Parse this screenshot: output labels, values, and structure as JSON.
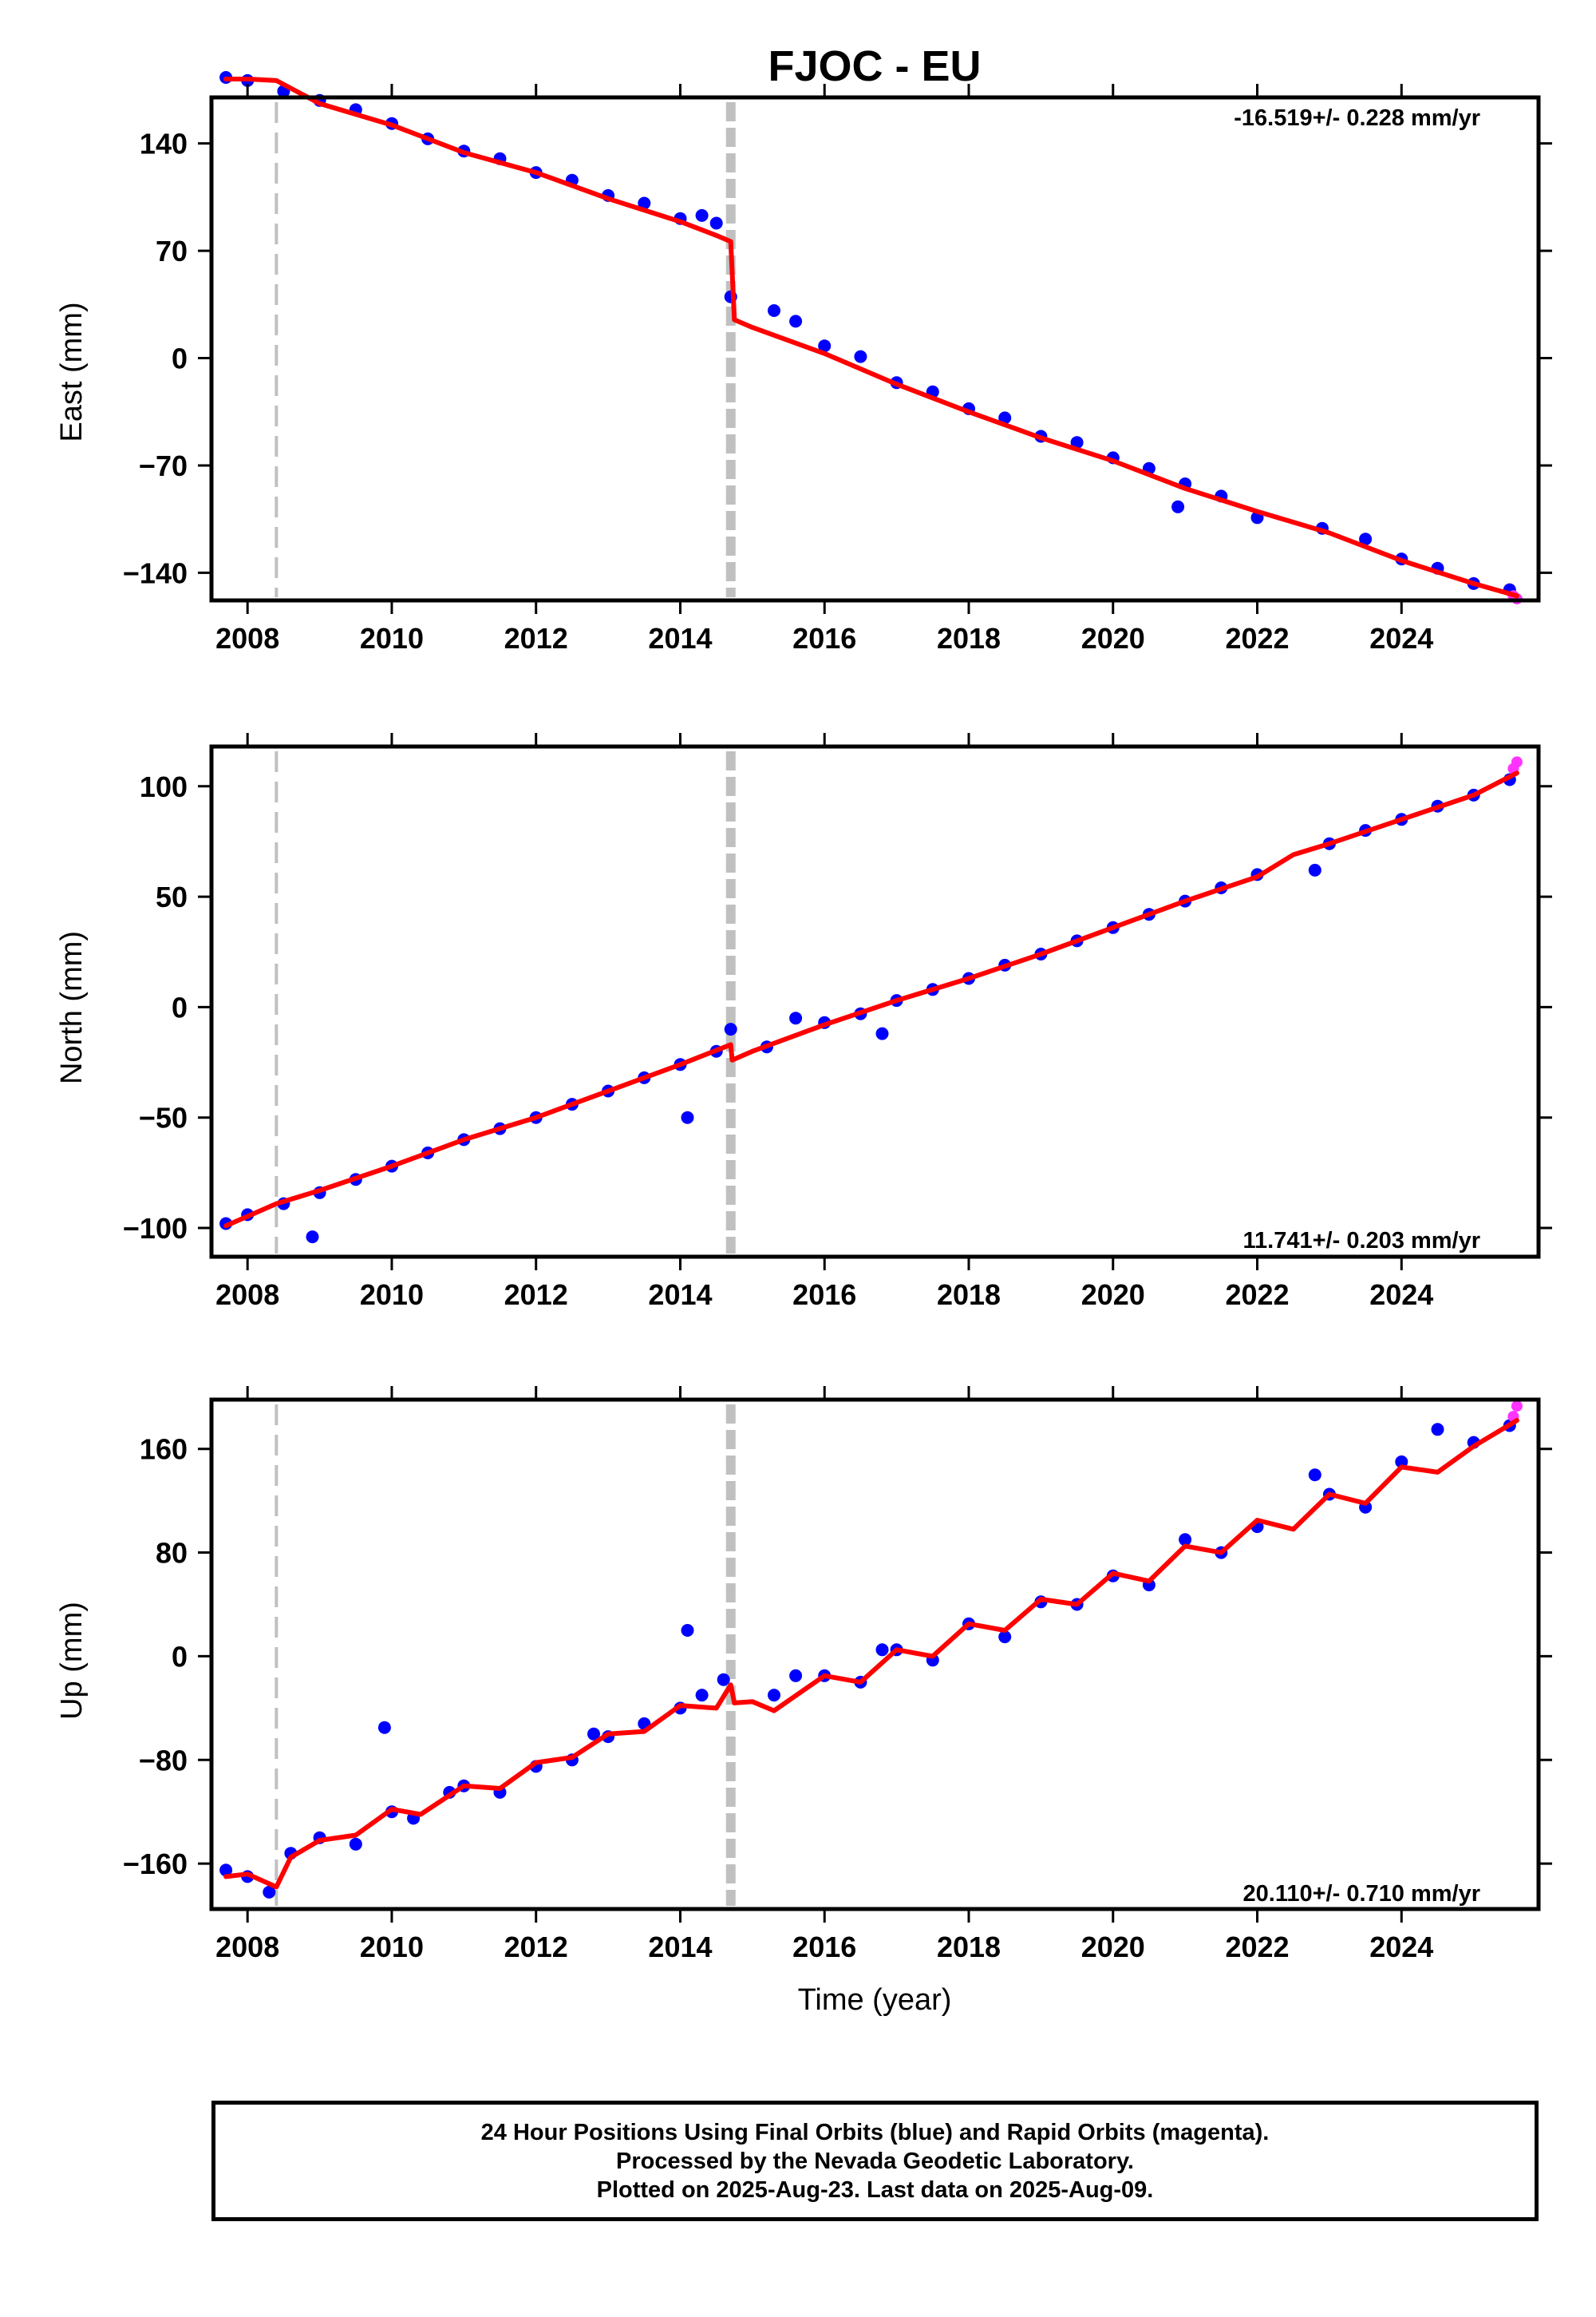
{
  "chart_data": [
    {
      "type": "scatter",
      "title": "FJOC - EU",
      "ylabel": "East (mm)",
      "xlabel": "",
      "xlim": [
        2007.5,
        2025.9
      ],
      "ylim": [
        -158,
        170
      ],
      "xticks": [
        2008,
        2010,
        2012,
        2014,
        2016,
        2018,
        2020,
        2022,
        2024
      ],
      "yticks": [
        -140,
        -70,
        0,
        70,
        140
      ],
      "tick_labels": {
        "y": [
          "−140",
          "−70",
          "0",
          "70",
          "140"
        ]
      },
      "rate_label": "-16.519+/- 0.228 mm/yr",
      "rate_position": "top-right",
      "dashed_lines_x": [
        2008.4,
        2014.7
      ],
      "model": {
        "x": [
          2007.7,
          2008.0,
          2008.4,
          2009.0,
          2010.0,
          2011.0,
          2012.0,
          2013.0,
          2014.0,
          2014.5,
          2014.7,
          2014.75,
          2015.0,
          2016.0,
          2017.0,
          2018.0,
          2019.0,
          2020.0,
          2021.0,
          2022.0,
          2023.0,
          2024.0,
          2025.0,
          2025.6
        ],
        "y": [
          182,
          182,
          181,
          166,
          152,
          134,
          121,
          104,
          89,
          80,
          76,
          25,
          20,
          3,
          -17,
          -35,
          -52,
          -67,
          -85,
          -100,
          -114,
          -132,
          -147,
          -155
        ]
      },
      "series": [
        {
          "color": "#0000ff",
          "points": [
            [
              2007.7,
              183
            ],
            [
              2008.0,
              181
            ],
            [
              2008.5,
              174
            ],
            [
              2009.0,
              168
            ],
            [
              2009.5,
              162
            ],
            [
              2010.0,
              153
            ],
            [
              2010.5,
              143
            ],
            [
              2011.0,
              135
            ],
            [
              2011.5,
              130
            ],
            [
              2012.0,
              121
            ],
            [
              2012.5,
              116
            ],
            [
              2013.0,
              106
            ],
            [
              2013.5,
              101
            ],
            [
              2014.0,
              91
            ],
            [
              2014.3,
              93
            ],
            [
              2014.5,
              88
            ],
            [
              2014.7,
              40
            ],
            [
              2015.3,
              31
            ],
            [
              2015.6,
              24
            ],
            [
              2016.0,
              8
            ],
            [
              2016.5,
              1
            ],
            [
              2017.0,
              -16
            ],
            [
              2017.5,
              -22
            ],
            [
              2018.0,
              -33
            ],
            [
              2018.5,
              -39
            ],
            [
              2019.0,
              -51
            ],
            [
              2019.5,
              -55
            ],
            [
              2020.0,
              -65
            ],
            [
              2020.5,
              -72
            ],
            [
              2020.9,
              -97
            ],
            [
              2021.0,
              -82
            ],
            [
              2021.5,
              -90
            ],
            [
              2022.0,
              -104
            ],
            [
              2022.9,
              -111
            ],
            [
              2023.5,
              -118
            ],
            [
              2024.0,
              -131
            ],
            [
              2024.5,
              -137
            ],
            [
              2025.0,
              -147
            ],
            [
              2025.5,
              -151
            ]
          ]
        },
        {
          "color": "#ff33ff",
          "points": [
            [
              2025.55,
              -155
            ],
            [
              2025.6,
              -157
            ]
          ]
        }
      ]
    },
    {
      "type": "scatter",
      "title": "",
      "ylabel": "North (mm)",
      "xlabel": "",
      "xlim": [
        2007.5,
        2025.9
      ],
      "ylim": [
        -113,
        118
      ],
      "xticks": [
        2008,
        2010,
        2012,
        2014,
        2016,
        2018,
        2020,
        2022,
        2024
      ],
      "yticks": [
        -100,
        -50,
        0,
        50,
        100
      ],
      "tick_labels": {
        "y": [
          "−100",
          "−50",
          "0",
          "50",
          "100"
        ]
      },
      "rate_label": "11.741+/- 0.203 mm/yr",
      "rate_position": "bottom-right",
      "dashed_lines_x": [
        2008.4,
        2014.7
      ],
      "model": {
        "x": [
          2007.7,
          2008.4,
          2009.0,
          2010.0,
          2011.0,
          2012.0,
          2013.0,
          2014.0,
          2014.7,
          2014.72,
          2015.0,
          2016.0,
          2017.0,
          2018.0,
          2019.0,
          2020.0,
          2021.0,
          2022.0,
          2022.5,
          2023.0,
          2024.0,
          2025.0,
          2025.6
        ],
        "y": [
          -99,
          -89,
          -83,
          -72,
          -60,
          -50,
          -38,
          -26,
          -17,
          -24,
          -20,
          -8,
          3,
          13,
          24,
          36,
          48,
          59,
          69,
          74,
          85,
          96,
          106
        ]
      },
      "series": [
        {
          "color": "#0000ff",
          "points": [
            [
              2007.7,
              -98
            ],
            [
              2008.0,
              -94
            ],
            [
              2008.5,
              -89
            ],
            [
              2008.9,
              -104
            ],
            [
              2009.0,
              -84
            ],
            [
              2009.5,
              -78
            ],
            [
              2010.0,
              -72
            ],
            [
              2010.5,
              -66
            ],
            [
              2011.0,
              -60
            ],
            [
              2011.5,
              -55
            ],
            [
              2012.0,
              -50
            ],
            [
              2012.5,
              -44
            ],
            [
              2013.0,
              -38
            ],
            [
              2013.5,
              -32
            ],
            [
              2014.0,
              -26
            ],
            [
              2014.1,
              -50
            ],
            [
              2014.5,
              -20
            ],
            [
              2014.7,
              -10
            ],
            [
              2015.2,
              -18
            ],
            [
              2015.6,
              -5
            ],
            [
              2016.0,
              -7
            ],
            [
              2016.5,
              -3
            ],
            [
              2016.8,
              -12
            ],
            [
              2017.0,
              3
            ],
            [
              2017.5,
              8
            ],
            [
              2018.0,
              13
            ],
            [
              2018.5,
              19
            ],
            [
              2019.0,
              24
            ],
            [
              2019.5,
              30
            ],
            [
              2020.0,
              36
            ],
            [
              2020.5,
              42
            ],
            [
              2021.0,
              48
            ],
            [
              2021.5,
              54
            ],
            [
              2022.0,
              60
            ],
            [
              2022.8,
              62
            ],
            [
              2023.0,
              74
            ],
            [
              2023.5,
              80
            ],
            [
              2024.0,
              85
            ],
            [
              2024.5,
              91
            ],
            [
              2025.0,
              96
            ],
            [
              2025.5,
              103
            ]
          ]
        },
        {
          "color": "#ff33ff",
          "points": [
            [
              2025.55,
              108
            ],
            [
              2025.6,
              111
            ]
          ]
        }
      ]
    },
    {
      "type": "scatter",
      "title": "",
      "ylabel": "Up (mm)",
      "xlabel": "Time (year)",
      "xlim": [
        2007.5,
        2025.9
      ],
      "ylim": [
        -195,
        198
      ],
      "xticks": [
        2008,
        2010,
        2012,
        2014,
        2016,
        2018,
        2020,
        2022,
        2024
      ],
      "yticks": [
        -160,
        -80,
        0,
        80,
        160
      ],
      "tick_labels": {
        "y": [
          "−160",
          "−80",
          "0",
          "80",
          "160"
        ]
      },
      "rate_label": "20.110+/- 0.710 mm/yr",
      "rate_position": "bottom-right",
      "dashed_lines_x": [
        2008.4,
        2014.7
      ],
      "model": {
        "x": [
          2007.7,
          2008.0,
          2008.4,
          2008.6,
          2009.0,
          2009.5,
          2010.0,
          2010.4,
          2011.0,
          2011.5,
          2012.0,
          2012.5,
          2013.0,
          2013.5,
          2014.0,
          2014.5,
          2014.7,
          2014.75,
          2015.0,
          2015.3,
          2016.0,
          2016.5,
          2017.0,
          2017.5,
          2018.0,
          2018.5,
          2019.0,
          2019.5,
          2020.0,
          2020.5,
          2021.0,
          2021.5,
          2022.0,
          2022.5,
          2023.0,
          2023.5,
          2024.0,
          2024.5,
          2025.0,
          2025.6
        ],
        "y": [
          -170,
          -168,
          -178,
          -155,
          -142,
          -138,
          -118,
          -122,
          -100,
          -102,
          -82,
          -78,
          -60,
          -58,
          -38,
          -40,
          -22,
          -36,
          -35,
          -42,
          -15,
          -20,
          5,
          0,
          25,
          20,
          44,
          40,
          64,
          58,
          85,
          80,
          105,
          98,
          125,
          118,
          146,
          142,
          162,
          182
        ]
      },
      "series": [
        {
          "color": "#0000ff",
          "points": [
            [
              2007.7,
              -165
            ],
            [
              2008.0,
              -170
            ],
            [
              2008.3,
              -182
            ],
            [
              2008.6,
              -152
            ],
            [
              2009.0,
              -140
            ],
            [
              2009.5,
              -145
            ],
            [
              2009.9,
              -55
            ],
            [
              2010.0,
              -120
            ],
            [
              2010.3,
              -125
            ],
            [
              2010.8,
              -105
            ],
            [
              2011.0,
              -100
            ],
            [
              2011.5,
              -105
            ],
            [
              2012.0,
              -85
            ],
            [
              2012.5,
              -80
            ],
            [
              2012.8,
              -60
            ],
            [
              2013.0,
              -62
            ],
            [
              2013.5,
              -52
            ],
            [
              2014.0,
              -40
            ],
            [
              2014.1,
              20
            ],
            [
              2014.3,
              -30
            ],
            [
              2014.6,
              -18
            ],
            [
              2015.3,
              -30
            ],
            [
              2015.6,
              -15
            ],
            [
              2016.0,
              -15
            ],
            [
              2016.5,
              -20
            ],
            [
              2016.8,
              5
            ],
            [
              2017.0,
              5
            ],
            [
              2017.5,
              -3
            ],
            [
              2018.0,
              25
            ],
            [
              2018.5,
              15
            ],
            [
              2019.0,
              42
            ],
            [
              2019.5,
              40
            ],
            [
              2020.0,
              62
            ],
            [
              2020.5,
              55
            ],
            [
              2021.0,
              90
            ],
            [
              2021.5,
              80
            ],
            [
              2022.0,
              100
            ],
            [
              2022.8,
              140
            ],
            [
              2023.0,
              125
            ],
            [
              2023.5,
              115
            ],
            [
              2024.0,
              150
            ],
            [
              2024.5,
              175
            ],
            [
              2025.0,
              165
            ],
            [
              2025.5,
              178
            ]
          ]
        },
        {
          "color": "#ff33ff",
          "points": [
            [
              2025.55,
              185
            ],
            [
              2025.6,
              193
            ]
          ]
        }
      ]
    }
  ],
  "footer": {
    "line1": "24 Hour Positions Using Final Orbits (blue) and Rapid Orbits (magenta).",
    "line2": "Processed by the Nevada Geodetic Laboratory.",
    "line3": "Plotted on 2025-Aug-23. Last data on 2025-Aug-09."
  },
  "colors": {
    "final_orbits": "#0000ff",
    "rapid_orbits": "#ff33ff",
    "model_line": "#ff0000",
    "dashed_lines": "#c0c0c0"
  }
}
